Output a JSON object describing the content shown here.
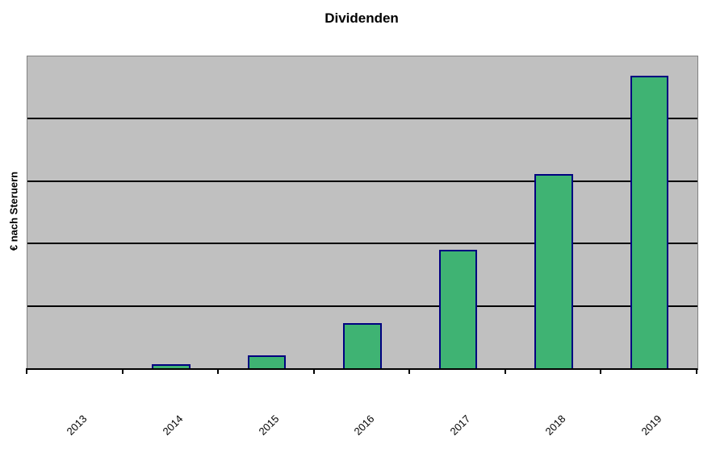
{
  "chart_data": {
    "type": "bar",
    "title": "Dividenden",
    "xlabel": "",
    "ylabel": "€ nach Steruern",
    "categories": [
      "2013",
      "2014",
      "2015",
      "2016",
      "2017",
      "2018",
      "2019"
    ],
    "values": [
      0,
      0.06,
      0.21,
      0.72,
      1.9,
      3.11,
      4.69
    ],
    "ylim": [
      0,
      5
    ],
    "y_tick_labels_visible": false,
    "gridlines_at": [
      1,
      2,
      3,
      4
    ],
    "grid": "horizontal-only",
    "legend": "none",
    "x_tick_rotation_deg": 45,
    "bar_width_fraction": 0.4
  },
  "colors": {
    "bar_fill": "#3FB373",
    "bar_border": "#000080",
    "plot_background": "#C0C0C0",
    "plot_border": "#808080",
    "gridline": "#000000",
    "axis": "#000000",
    "text": "#000000",
    "page_background": "#FFFFFF"
  }
}
